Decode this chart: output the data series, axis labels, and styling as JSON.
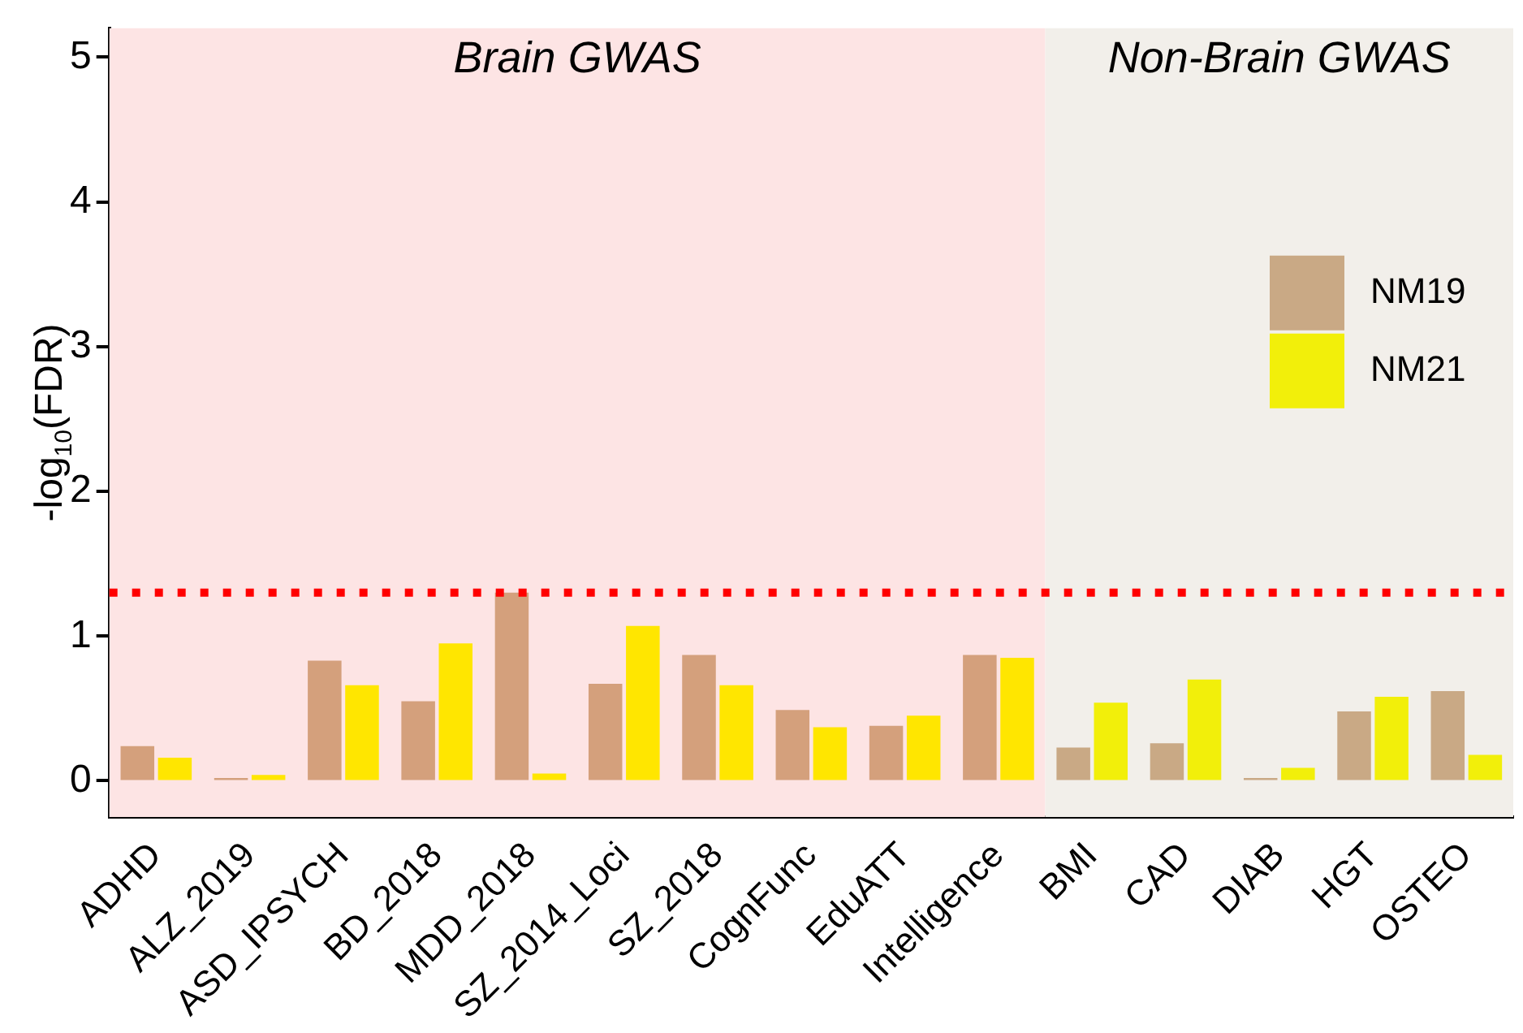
{
  "chart_data": {
    "type": "bar",
    "ylabel": "-log$_{10}$(FDR)",
    "categories": [
      "ADHD",
      "ALZ_2019",
      "ASD_IPSYCH",
      "BD_2018",
      "MDD_2018",
      "SZ_2014_Loci",
      "SZ_2018",
      "CognFunc",
      "EduATT",
      "Intelligence",
      "BMI",
      "CAD",
      "DIAB",
      "HGT",
      "OSTEO"
    ],
    "series": [
      {
        "name": "NM19",
        "color": "#c9a985",
        "colors": [
          "#d4a07c",
          "#d4a07c",
          "#d4a07c",
          "#d4a07c",
          "#d4a07c",
          "#d4a07c",
          "#d4a07c",
          "#d4a07c",
          "#d4a07c",
          "#d4a07c",
          "#c9a985",
          "#c9a985",
          "#c9a985",
          "#c9a985",
          "#c9a985"
        ],
        "values": [
          0.24,
          0.02,
          0.83,
          0.55,
          1.3,
          0.67,
          0.87,
          0.49,
          0.38,
          0.87,
          0.23,
          0.26,
          0.02,
          0.48,
          0.62
        ]
      },
      {
        "name": "NM21",
        "color": "#f2ef0a",
        "colors": [
          "#ffe600",
          "#ffe600",
          "#ffe600",
          "#ffe600",
          "#ffe600",
          "#ffe600",
          "#ffe600",
          "#ffe600",
          "#ffe600",
          "#ffe600",
          "#f2ef0a",
          "#f2ef0a",
          "#f2ef0a",
          "#f2ef0a",
          "#f2ef0a"
        ],
        "values": [
          0.16,
          0.04,
          0.66,
          0.95,
          0.05,
          1.07,
          0.66,
          0.37,
          0.45,
          0.85,
          0.54,
          0.7,
          0.09,
          0.58,
          0.18
        ]
      }
    ],
    "ylim": [
      -0.25,
      5.2
    ],
    "yticks": [
      0,
      1,
      2,
      3,
      4,
      5
    ],
    "ref_lines": [
      {
        "axis": "y",
        "value": 1.3,
        "color": "#ff0000",
        "line_style": "dotted"
      }
    ],
    "bands": [
      {
        "axis": "x",
        "from": "ADHD",
        "to": "Intelligence",
        "label": "Brain GWAS",
        "color": "#fde4e4"
      },
      {
        "axis": "x",
        "from": "BMI",
        "to": "OSTEO",
        "label": "Non-Brain GWAS",
        "color": "#f2efea"
      }
    ],
    "grid": false,
    "legend": "right"
  }
}
